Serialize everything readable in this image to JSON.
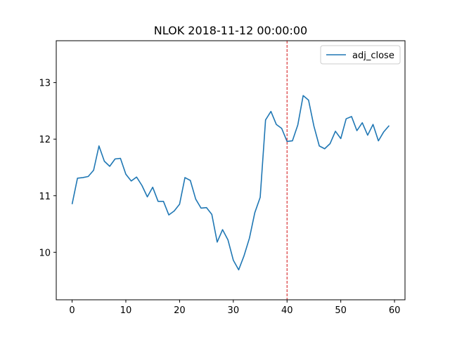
{
  "chart_data": {
    "type": "line",
    "title": "NLOK 2018-11-12 00:00:00",
    "xlabel": "",
    "ylabel": "",
    "xlim": [
      -2.95,
      61.95
    ],
    "ylim": [
      9.16,
      13.74
    ],
    "xticks": [
      0,
      10,
      20,
      30,
      40,
      50,
      60
    ],
    "yticks": [
      10,
      11,
      12,
      13
    ],
    "grid": false,
    "legend": {
      "placement": "upper right",
      "entries": [
        "adj_close"
      ]
    },
    "vline": {
      "x": 40,
      "color": "#d62728",
      "style": "dashed"
    },
    "series": [
      {
        "name": "adj_close",
        "color": "#1f77b4",
        "x": [
          0,
          1,
          2,
          3,
          4,
          5,
          6,
          7,
          8,
          9,
          10,
          11,
          12,
          13,
          14,
          15,
          16,
          17,
          18,
          19,
          20,
          21,
          22,
          23,
          24,
          25,
          26,
          27,
          28,
          29,
          30,
          31,
          32,
          33,
          34,
          35,
          36,
          37,
          38,
          39,
          40,
          41,
          42,
          43,
          44,
          45,
          46,
          47,
          48,
          49,
          50,
          51,
          52,
          53,
          54,
          55,
          56,
          57,
          58,
          59
        ],
        "values": [
          10.85,
          11.31,
          11.32,
          11.34,
          11.45,
          11.88,
          11.61,
          11.52,
          11.65,
          11.66,
          11.38,
          11.26,
          11.33,
          11.18,
          10.98,
          11.15,
          10.9,
          10.9,
          10.66,
          10.73,
          10.85,
          11.32,
          11.27,
          10.94,
          10.78,
          10.79,
          10.67,
          10.18,
          10.4,
          10.22,
          9.86,
          9.69,
          9.94,
          10.25,
          10.7,
          10.97,
          12.34,
          12.49,
          12.26,
          12.19,
          11.96,
          11.97,
          12.25,
          12.77,
          12.69,
          12.23,
          11.88,
          11.83,
          11.92,
          12.14,
          12.01,
          12.36,
          12.4,
          12.15,
          12.29,
          12.07,
          12.26,
          11.97,
          12.13,
          12.24
        ]
      }
    ]
  }
}
